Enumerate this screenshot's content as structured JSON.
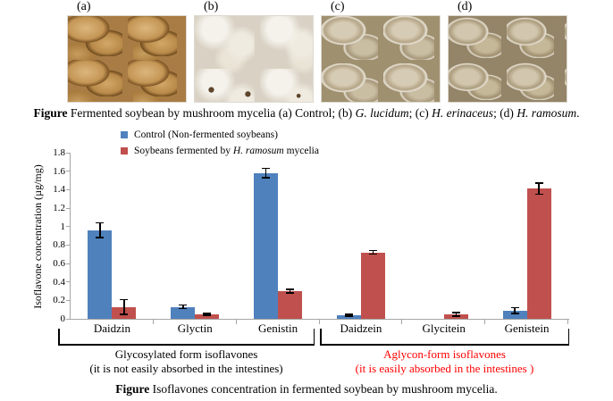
{
  "figure": {
    "photos": [
      {
        "label": "(a)"
      },
      {
        "label": "(b)"
      },
      {
        "label": "(c)"
      },
      {
        "label": "(d)"
      }
    ],
    "caption_top_parts": [
      {
        "t": "Figure",
        "b": true
      },
      {
        "t": " Fermented soybean by mushroom mycelia (a) Control; (b) "
      },
      {
        "t": "G. lucidum",
        "i": true
      },
      {
        "t": "; (c) "
      },
      {
        "t": "H. erinaceus",
        "i": true
      },
      {
        "t": "; (d) "
      },
      {
        "t": "H. ramosum",
        "i": true
      },
      {
        "t": "."
      }
    ],
    "caption_bottom_parts": [
      {
        "t": "Figure",
        "b": true
      },
      {
        "t": " Isoflavones concentration in fermented soybean by mushroom mycelia."
      }
    ]
  },
  "chart_data": {
    "type": "bar",
    "title": "",
    "xlabel": "",
    "ylabel": "Isoflavone concentration (µg/mg)",
    "ylim": [
      0,
      1.8
    ],
    "ytick_step": 0.2,
    "grid": false,
    "legend_position": "top-left",
    "error_bars": true,
    "categories": [
      "Daidzin",
      "Glyctin",
      "Genistin",
      "Daidzein",
      "Glycitein",
      "Genistein"
    ],
    "series": [
      {
        "name": "Control (Non-fermented soybeans)",
        "color": "#4f81bd",
        "values": [
          0.96,
          0.13,
          1.58,
          0.04,
          0,
          0.09
        ],
        "errors": [
          0.08,
          0.02,
          0.05,
          0.01,
          0,
          0.03
        ]
      },
      {
        "name": "Soybeans fermented by H. ramosum mycelia",
        "color": "#c0504d",
        "values": [
          0.13,
          0.05,
          0.3,
          0.72,
          0.05,
          1.41
        ],
        "errors": [
          0.08,
          0.01,
          0.02,
          0.02,
          0.02,
          0.06
        ]
      }
    ],
    "legend": [
      {
        "color": "#4f81bd",
        "parts": [
          {
            "t": "Control (Non-fermented soybeans)"
          }
        ]
      },
      {
        "color": "#c0504d",
        "parts": [
          {
            "t": "Soybeans fermented by "
          },
          {
            "t": "H. ramosum",
            "i": true
          },
          {
            "t": " mycelia"
          }
        ]
      }
    ],
    "group_annotations": [
      {
        "categories": [
          "Daidzin",
          "Glyctin",
          "Genistin"
        ],
        "color": "#000000",
        "label": "Glycosylated form isoflavones",
        "sublabel": "(it is not easily absorbed in the intestines)"
      },
      {
        "categories": [
          "Daidzein",
          "Glycitein",
          "Genistein"
        ],
        "color": "#ff0000",
        "label": "Aglycon-form isoflavones",
        "sublabel": "(it is easily absorbed in the intestines )"
      }
    ]
  }
}
